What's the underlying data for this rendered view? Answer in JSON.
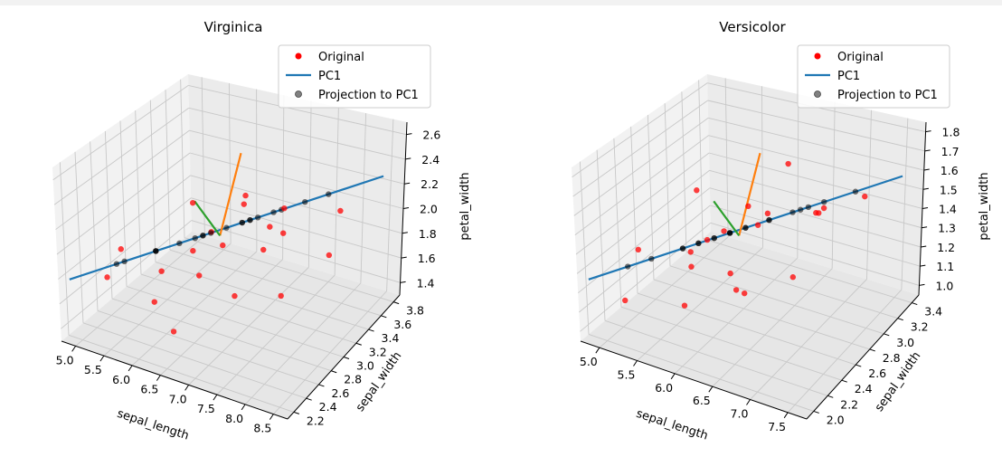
{
  "chart_data": [
    {
      "type": "scatter3d",
      "title": "Virginica",
      "xlabel": "sepal_length",
      "ylabel": "sepal_width",
      "zlabel": "petal_width",
      "x_ticks": [
        "5.0",
        "5.5",
        "6.0",
        "6.5",
        "7.0",
        "7.5",
        "8.0",
        "8.5"
      ],
      "y_ticks": [
        "2.2",
        "2.4",
        "2.6",
        "2.8",
        "3.0",
        "3.2",
        "3.4",
        "3.6",
        "3.8"
      ],
      "z_ticks": [
        "1.4",
        "1.6",
        "1.8",
        "2.0",
        "2.2",
        "2.4",
        "2.6"
      ],
      "legend": [
        "Original",
        "PC1",
        "Projection to PC1"
      ],
      "legend_position": "upper right",
      "colors": {
        "original": "#ff0000",
        "pc1": "#1f77b4",
        "projection": "#000000",
        "pc2": "#ff7f0e",
        "pc3": "#2ca02c"
      }
    },
    {
      "type": "scatter3d",
      "title": "Versicolor",
      "xlabel": "sepal_length",
      "ylabel": "sepal_width",
      "zlabel": "petal_width",
      "x_ticks": [
        "5.0",
        "5.5",
        "6.0",
        "6.5",
        "7.0",
        "7.5"
      ],
      "y_ticks": [
        "2.0",
        "2.2",
        "2.4",
        "2.6",
        "2.8",
        "3.0",
        "3.2",
        "3.4"
      ],
      "z_ticks": [
        "1.0",
        "1.1",
        "1.2",
        "1.3",
        "1.4",
        "1.5",
        "1.6",
        "1.7",
        "1.8"
      ],
      "legend": [
        "Original",
        "PC1",
        "Projection to PC1"
      ],
      "legend_position": "upper right",
      "colors": {
        "original": "#ff0000",
        "pc1": "#1f77b4",
        "projection": "#000000",
        "pc2": "#ff7f0e",
        "pc3": "#2ca02c"
      }
    }
  ]
}
